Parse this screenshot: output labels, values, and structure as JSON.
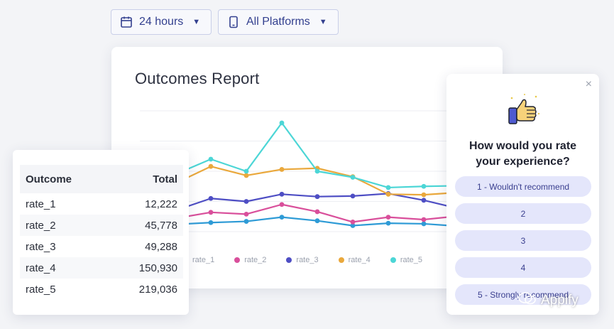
{
  "filters": {
    "time": {
      "label": "24 hours",
      "icon": "calendar-icon"
    },
    "platform": {
      "label": "All Platforms",
      "icon": "phone-icon"
    }
  },
  "report": {
    "title": "Outcomes Report",
    "legend": [
      "rate_1",
      "rate_2",
      "rate_3",
      "rate_4",
      "rate_5"
    ]
  },
  "chart_data": {
    "type": "line",
    "x": [
      1,
      2,
      3,
      4,
      5,
      6,
      7,
      8,
      9,
      10,
      11
    ],
    "series": [
      {
        "name": "rate_1",
        "color": "#2e9bd6",
        "values": [
          10,
          12,
          15,
          17,
          24,
          18,
          10,
          14,
          13,
          9,
          10
        ]
      },
      {
        "name": "rate_2",
        "color": "#d94f9b",
        "values": [
          20,
          22,
          32,
          29,
          45,
          33,
          16,
          24,
          20,
          26,
          24
        ]
      },
      {
        "name": "rate_3",
        "color": "#4e4ec4",
        "values": [
          28,
          35,
          55,
          50,
          62,
          58,
          59,
          63,
          52,
          38,
          38
        ]
      },
      {
        "name": "rate_4",
        "color": "#eaa83c",
        "values": [
          73,
          80,
          108,
          93,
          103,
          105,
          91,
          62,
          61,
          65,
          68
        ]
      },
      {
        "name": "rate_5",
        "color": "#4cd6d6",
        "values": [
          100,
          95,
          120,
          100,
          180,
          100,
          90,
          73,
          75,
          76,
          78
        ]
      }
    ],
    "ylim": [
      0,
      200
    ],
    "grid": true
  },
  "table": {
    "headers": [
      "Outcome",
      "Total"
    ],
    "rows": [
      [
        "rate_1",
        "12,222"
      ],
      [
        "rate_2",
        "45,778"
      ],
      [
        "rate_3",
        "49,288"
      ],
      [
        "rate_4",
        "150,930"
      ],
      [
        "rate_5",
        "219,036"
      ]
    ]
  },
  "survey": {
    "question_line1": "How would you rate",
    "question_line2": "your experience?",
    "options": [
      "1 - Wouldn't recommend",
      "2",
      "3",
      "4",
      "5 - Strongly recommend"
    ],
    "close": "×"
  },
  "watermark": {
    "text": "Appify"
  }
}
